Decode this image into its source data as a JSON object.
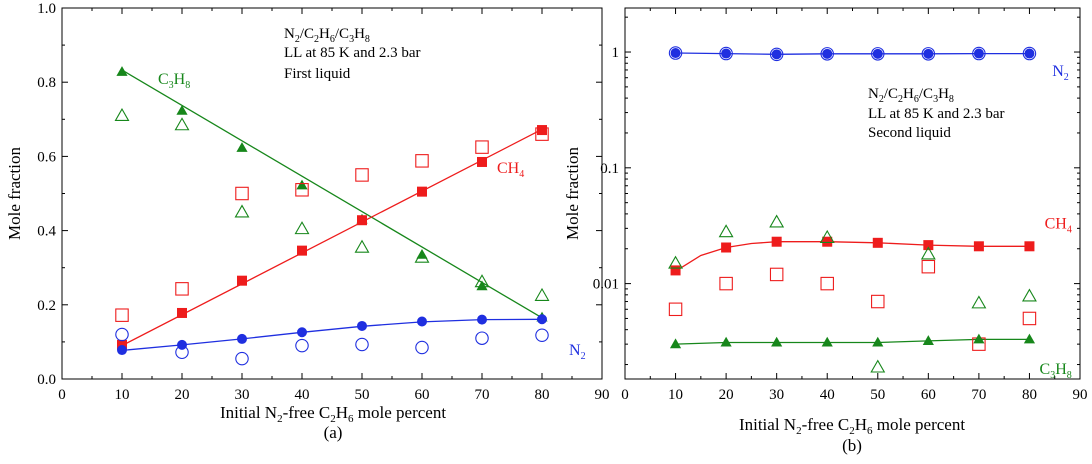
{
  "figure": {
    "colors": {
      "n2": "#1f2fe0",
      "ch4": "#ee1c1c",
      "c3h8": "#17871b",
      "axis": "#000000"
    }
  },
  "chart_data": [
    {
      "id": "a",
      "type": "scatter",
      "yscale": "linear",
      "panel_label": "(a)",
      "xlabel": {
        "pre": "Initial N",
        "sub1": "2",
        "mid": "-free C",
        "sub2": "2",
        "mid2": "H",
        "sub3": "6",
        "post": " mole percent"
      },
      "ylabel": "Mole fraction",
      "xlim": [
        0,
        90
      ],
      "ylim": [
        0,
        1.0
      ],
      "xticks": [
        "0",
        "10",
        "20",
        "30",
        "40",
        "50",
        "60",
        "70",
        "80",
        "90"
      ],
      "yticks": [
        "0.0",
        "0.2",
        "0.4",
        "0.6",
        "0.8",
        "1.0"
      ],
      "annotation": [
        "N2/C2H6/C3H8",
        "LL at 85 K and 2.3 bar",
        "First liquid"
      ],
      "x": [
        10,
        20,
        30,
        40,
        50,
        60,
        70,
        80
      ],
      "series": [
        {
          "name": "C3H8",
          "key": "c3h8",
          "marker": "triangle",
          "filled": [
            0.828,
            0.723,
            0.623,
            0.522,
            0.43,
            0.335,
            0.25,
            0.166
          ],
          "open": [
            0.71,
            0.685,
            0.45,
            0.405,
            0.355,
            0.328,
            0.262,
            0.225
          ]
        },
        {
          "name": "CH4",
          "key": "ch4",
          "marker": "square",
          "filled": [
            0.092,
            0.178,
            0.265,
            0.346,
            0.428,
            0.505,
            0.585,
            0.671
          ],
          "open": [
            0.172,
            0.243,
            0.5,
            0.51,
            0.55,
            0.588,
            0.625,
            0.66
          ]
        },
        {
          "name": "N2",
          "key": "n2",
          "marker": "circle",
          "filled": [
            0.078,
            0.092,
            0.108,
            0.126,
            0.143,
            0.155,
            0.16,
            0.161
          ],
          "open": [
            0.12,
            0.072,
            0.055,
            0.09,
            0.093,
            0.085,
            0.11,
            0.118
          ]
        }
      ],
      "curves": {
        "c3h8": [
          [
            10,
            0.833
          ],
          [
            80,
            0.165
          ]
        ],
        "ch4": [
          [
            10,
            0.09
          ],
          [
            80,
            0.673
          ]
        ],
        "n2": [
          [
            10,
            0.077
          ],
          [
            20,
            0.092
          ],
          [
            30,
            0.108
          ],
          [
            40,
            0.126
          ],
          [
            50,
            0.142
          ],
          [
            60,
            0.154
          ],
          [
            70,
            0.16
          ],
          [
            80,
            0.161
          ]
        ]
      },
      "labels": [
        {
          "key": "c3h8",
          "base": "C",
          "s1": "3",
          "mid": "H",
          "s2": "8",
          "x": 16,
          "y": 0.795
        },
        {
          "key": "ch4",
          "base": "CH",
          "s1": "4",
          "mid": "",
          "s2": "",
          "x": 72.5,
          "y": 0.555
        },
        {
          "key": "n2",
          "base": "N",
          "s1": "2",
          "mid": "",
          "s2": "",
          "x": 84.5,
          "y": 0.065
        }
      ]
    },
    {
      "id": "b",
      "type": "scatter",
      "yscale": "log",
      "panel_label": "(b)",
      "xlabel": {
        "pre": "Initial N",
        "sub1": "2",
        "mid": "-free C",
        "sub2": "2",
        "mid2": "H",
        "sub3": "6",
        "post": " mole percent"
      },
      "ylabel": "Mole fraction",
      "xlim": [
        0,
        90
      ],
      "ylim": [
        0.0015,
        2.4
      ],
      "xticks": [
        "0",
        "10",
        "20",
        "30",
        "40",
        "50",
        "60",
        "70",
        "80",
        "90"
      ],
      "yticks": [
        "0.01",
        "0.1",
        "1"
      ],
      "annotation": [
        "N2/C2H6/C3H8",
        "LL at 85 K and 2.3 bar",
        "Second liquid"
      ],
      "x": [
        10,
        20,
        30,
        40,
        50,
        60,
        70,
        80
      ],
      "series": [
        {
          "name": "N2",
          "key": "n2",
          "marker": "circle",
          "filled": [
            0.98,
            0.97,
            0.955,
            0.965,
            0.965,
            0.965,
            0.97,
            0.97
          ],
          "open": [
            0.98,
            0.97,
            0.955,
            0.965,
            0.965,
            0.965,
            0.97,
            0.97
          ]
        },
        {
          "name": "CH4",
          "key": "ch4",
          "marker": "square",
          "filled": [
            0.013,
            0.0205,
            0.023,
            0.023,
            0.0225,
            0.0215,
            0.021,
            0.021
          ],
          "open": [
            0.006,
            0.01,
            0.012,
            0.01,
            0.007,
            0.014,
            0.003,
            0.005
          ]
        },
        {
          "name": "C3H8",
          "key": "c3h8",
          "marker": "triangle",
          "filled": [
            0.003,
            0.0031,
            0.0031,
            0.0031,
            0.0031,
            0.0032,
            0.0033,
            0.0033
          ],
          "open": [
            0.015,
            0.028,
            0.034,
            0.025,
            0.0019,
            0.018,
            0.0068,
            0.0078
          ]
        }
      ],
      "curves": {
        "n2": [
          [
            10,
            0.98
          ],
          [
            20,
            0.97
          ],
          [
            30,
            0.955
          ],
          [
            40,
            0.965
          ],
          [
            50,
            0.965
          ],
          [
            60,
            0.965
          ],
          [
            70,
            0.97
          ],
          [
            80,
            0.97
          ]
        ],
        "ch4": [
          [
            10,
            0.0128
          ],
          [
            15,
            0.0175
          ],
          [
            20,
            0.0205
          ],
          [
            25,
            0.0222
          ],
          [
            30,
            0.023
          ],
          [
            40,
            0.023
          ],
          [
            50,
            0.0225
          ],
          [
            60,
            0.0215
          ],
          [
            70,
            0.021
          ],
          [
            80,
            0.021
          ]
        ],
        "c3h8": [
          [
            10,
            0.003
          ],
          [
            20,
            0.0031
          ],
          [
            30,
            0.0031
          ],
          [
            40,
            0.0031
          ],
          [
            50,
            0.0031
          ],
          [
            60,
            0.0032
          ],
          [
            70,
            0.0033
          ],
          [
            80,
            0.0033
          ]
        ]
      },
      "labels": [
        {
          "key": "n2",
          "base": "N",
          "s1": "2",
          "mid": "",
          "s2": "",
          "x": 84.5,
          "y": 0.62
        },
        {
          "key": "ch4",
          "base": "CH",
          "s1": "4",
          "mid": "",
          "s2": "",
          "x": 83,
          "y": 0.03
        },
        {
          "key": "c3h8",
          "base": "C",
          "s1": "3",
          "mid": "H",
          "s2": "8",
          "x": 82,
          "y": 0.00165
        }
      ]
    }
  ]
}
